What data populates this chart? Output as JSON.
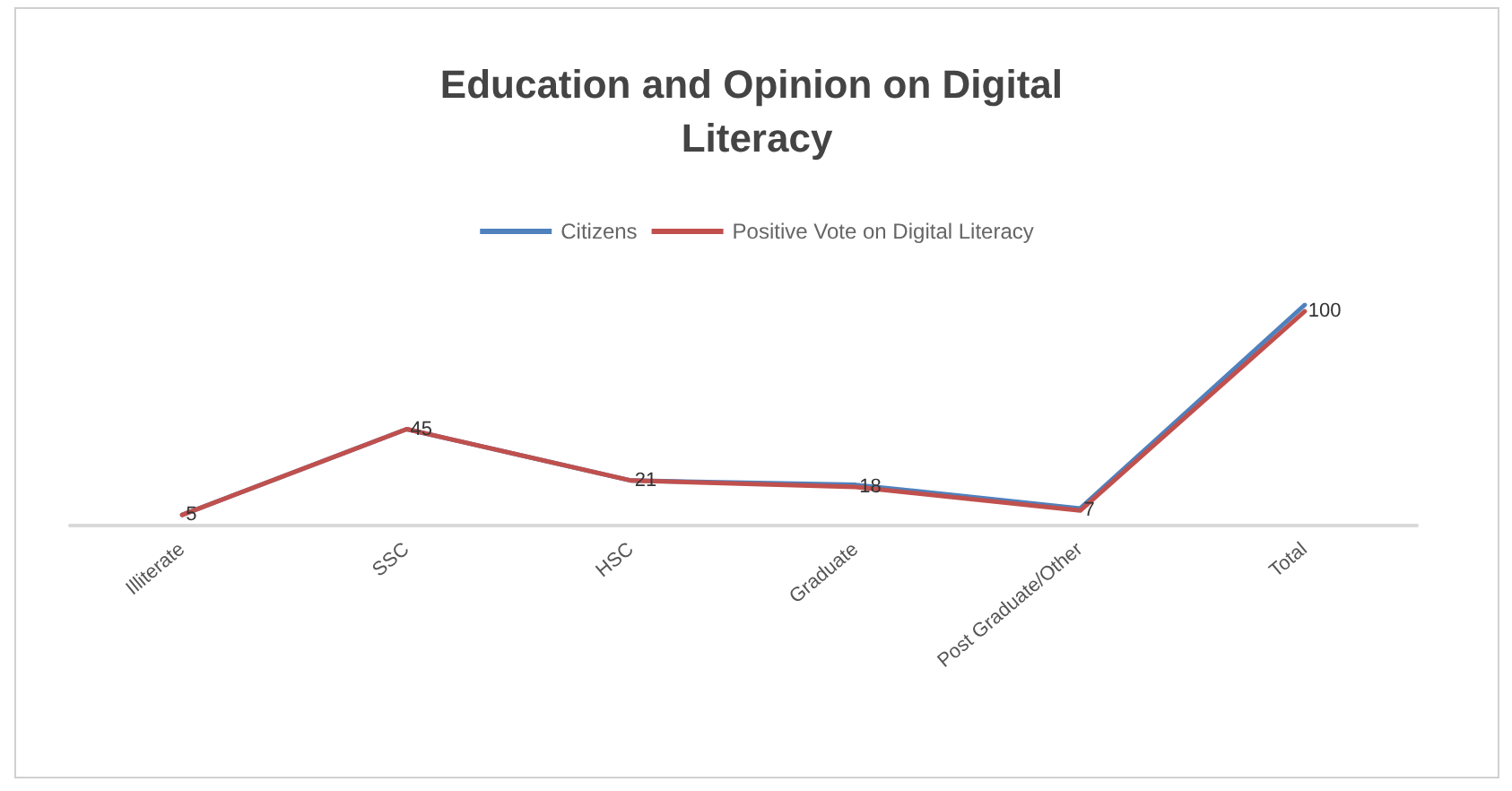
{
  "chart_data": {
    "type": "line",
    "title": "Education and Opinion on Digital Literacy",
    "categories": [
      "Illiterate",
      "SSC",
      "HSC",
      "Graduate",
      "Post Graduate/Other",
      "Total"
    ],
    "series": [
      {
        "name": "Citizens",
        "color": "#4f81bd",
        "values": [
          5,
          45,
          21,
          19,
          8,
          103
        ]
      },
      {
        "name": "Positive Vote on Digital Literacy",
        "color": "#c0504d",
        "values": [
          5,
          45,
          21,
          18,
          7,
          100
        ],
        "value_labels": [
          "5",
          "45",
          "21",
          "18",
          "7",
          "100"
        ]
      }
    ],
    "legend": "top",
    "grid": false,
    "marker": "none",
    "line_style": "solid"
  }
}
